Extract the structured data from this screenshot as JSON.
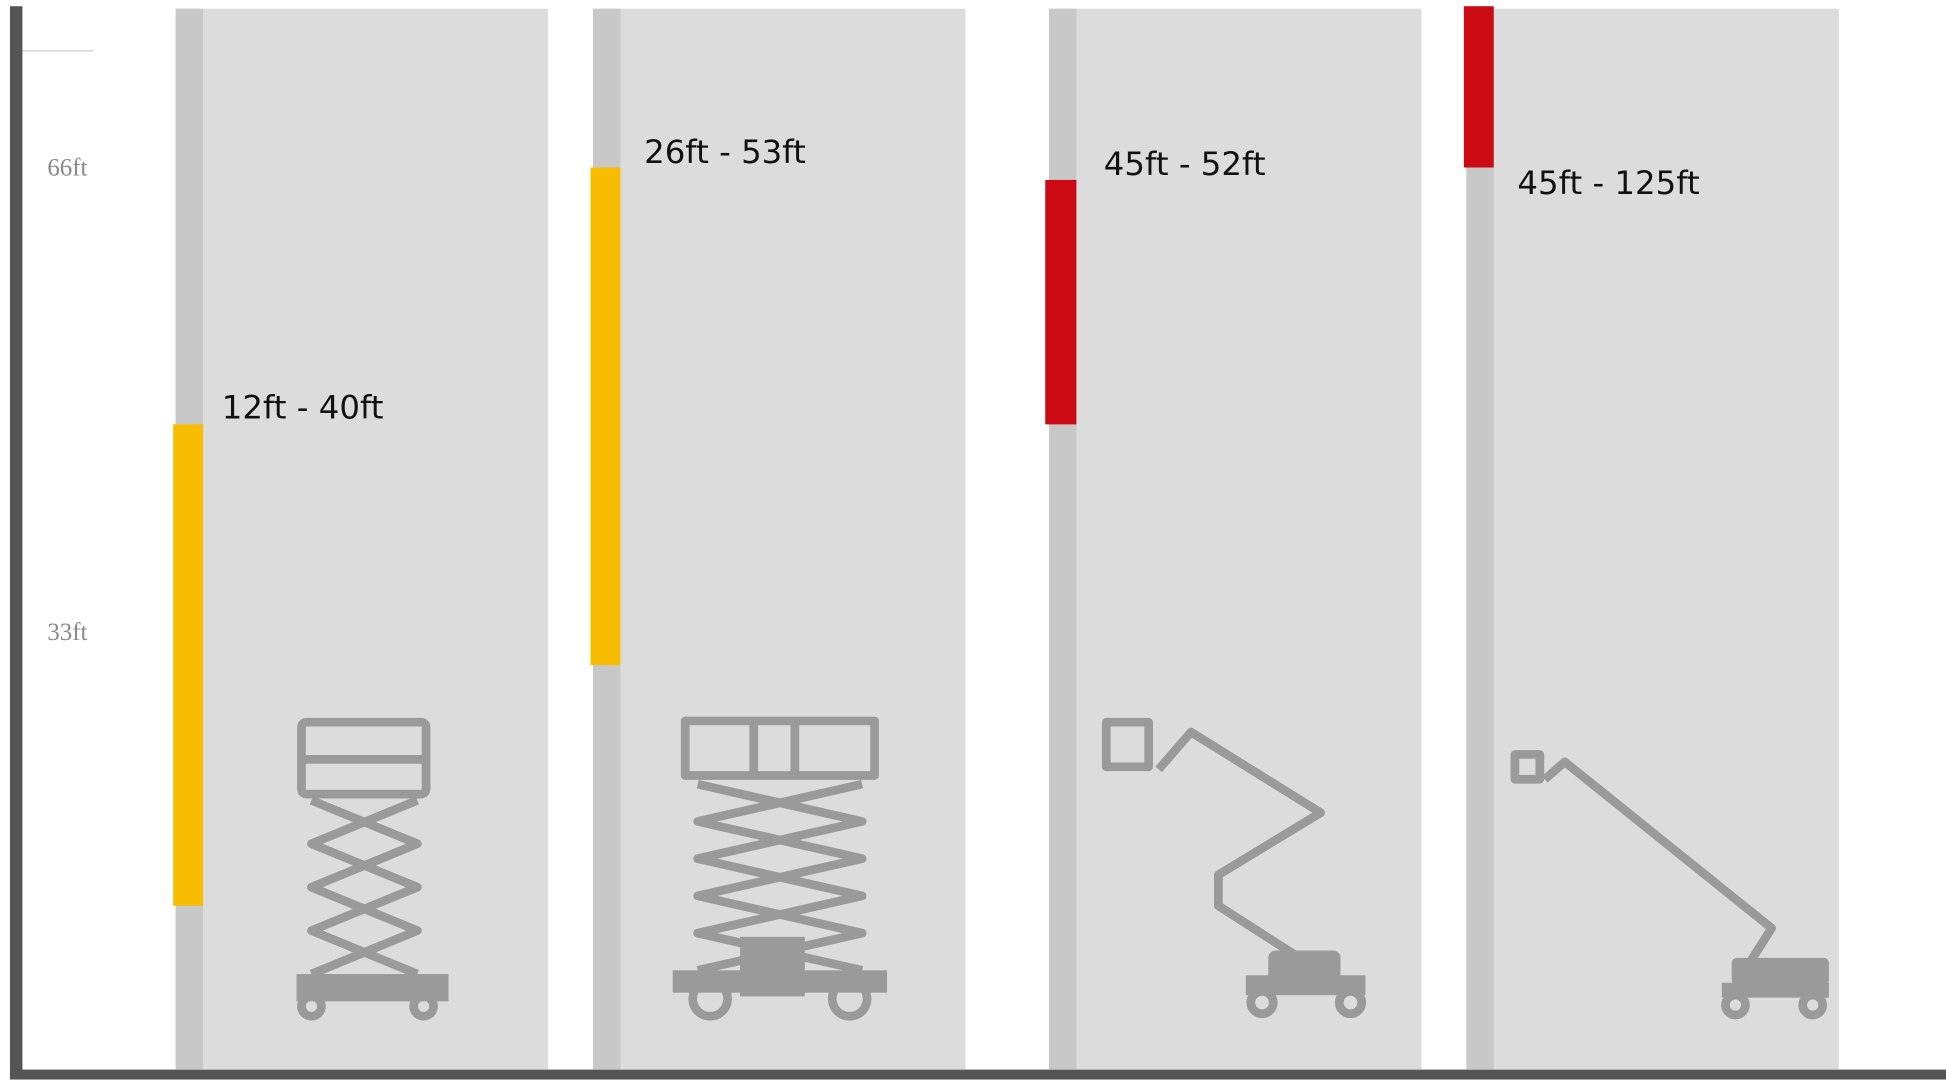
{
  "axis": {
    "labels": [
      "66ft",
      "33ft"
    ]
  },
  "machines": [
    {
      "range": "12ft - 40ft"
    },
    {
      "range": "26ft - 53ft"
    },
    {
      "range": "45ft - 52ft"
    },
    {
      "range": "45ft - 125ft"
    }
  ]
}
